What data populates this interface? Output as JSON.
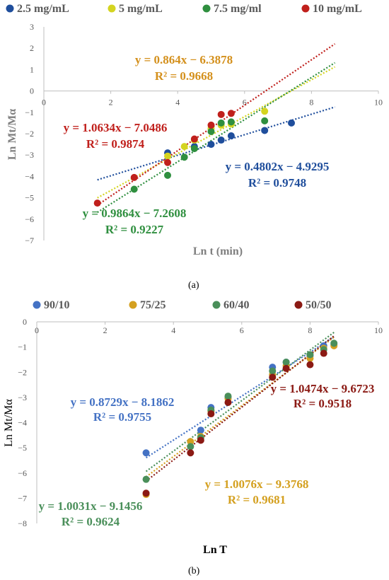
{
  "panel_labels": [
    "(a)",
    "(b)"
  ],
  "chart_data": [
    {
      "type": "scatter",
      "title": "",
      "xlabel": "Ln t (min)",
      "ylabel": "Ln Mt/Mα",
      "xlim": [
        0,
        10
      ],
      "ylim": [
        -7,
        3
      ],
      "xticks": [
        0,
        2,
        4,
        6,
        8,
        10
      ],
      "yticks": [
        3,
        2,
        1,
        0,
        -1,
        -2,
        -3,
        -4,
        -5,
        -6,
        -7
      ],
      "grid": false,
      "legend_position": "top",
      "series": [
        {
          "name": "2.5 mg/mL",
          "color": "#1f4e9c",
          "points": [
            [
              3.7,
              -2.9
            ],
            [
              4.5,
              -2.6
            ],
            [
              5.0,
              -2.5
            ],
            [
              5.3,
              -2.3
            ],
            [
              5.6,
              -2.1
            ],
            [
              6.6,
              -1.85
            ],
            [
              7.4,
              -1.5
            ]
          ],
          "trendline": {
            "slope": 0.4802,
            "intercept": -4.9295,
            "x_range": [
              1.6,
              8.7
            ]
          },
          "equation": "y = 0.4802x − 4.9295",
          "r2": "R² = 0.9748"
        },
        {
          "name": "5 mg/mL",
          "color": "#d4d420",
          "points": [
            [
              3.7,
              -3.05
            ],
            [
              4.2,
              -2.6
            ],
            [
              4.5,
              -2.3
            ],
            [
              5.0,
              -1.75
            ],
            [
              5.3,
              -1.6
            ],
            [
              5.6,
              -1.55
            ],
            [
              6.6,
              -0.95
            ]
          ],
          "trendline": {
            "slope": 0.864,
            "intercept": -6.3878,
            "x_range": [
              1.6,
              8.7
            ]
          },
          "equation": "y = 0.864x − 6.3878",
          "r2": "R² = 0.9668"
        },
        {
          "name": "7.5 mg/ml",
          "color": "#2f8f3f",
          "points": [
            [
              2.7,
              -4.6
            ],
            [
              3.7,
              -3.95
            ],
            [
              4.2,
              -3.1
            ],
            [
              4.5,
              -2.7
            ],
            [
              5.0,
              -1.9
            ],
            [
              5.3,
              -1.5
            ],
            [
              5.6,
              -1.45
            ],
            [
              6.6,
              -1.4
            ]
          ],
          "trendline": {
            "slope": 0.9864,
            "intercept": -7.2608,
            "x_range": [
              1.6,
              8.7
            ]
          },
          "equation": "y = 0.9864x − 7.2608",
          "r2": "R² = 0.9227"
        },
        {
          "name": "10 mg/mL",
          "color": "#c0201c",
          "points": [
            [
              1.6,
              -5.25
            ],
            [
              2.7,
              -4.05
            ],
            [
              3.7,
              -3.35
            ],
            [
              4.5,
              -2.25
            ],
            [
              5.0,
              -1.6
            ],
            [
              5.3,
              -1.1
            ],
            [
              5.6,
              -1.05
            ]
          ],
          "trendline": {
            "slope": 1.0634,
            "intercept": -7.0486,
            "x_range": [
              1.6,
              8.7
            ]
          },
          "equation": "y = 1.0634x − 7.0486",
          "r2": "R² = 0.9874"
        }
      ],
      "annotation_color_orange": "#d4901c"
    },
    {
      "type": "scatter",
      "title": "",
      "xlabel": "Ln T",
      "ylabel": "Ln Mt/Mα",
      "xlim": [
        0,
        10
      ],
      "ylim": [
        -8,
        0
      ],
      "xticks": [
        0,
        2,
        4,
        6,
        8,
        10
      ],
      "yticks": [
        0,
        -1,
        -2,
        -3,
        -4,
        -5,
        -6,
        -7,
        -8
      ],
      "grid": false,
      "legend_position": "top",
      "series": [
        {
          "name": "90/10",
          "color": "#4472c4",
          "points": [
            [
              3.2,
              -5.2
            ],
            [
              4.8,
              -4.3
            ],
            [
              5.1,
              -3.4
            ],
            [
              5.6,
              -3.0
            ],
            [
              6.9,
              -1.8
            ],
            [
              7.3,
              -1.6
            ],
            [
              8.0,
              -1.35
            ],
            [
              8.4,
              -0.95
            ],
            [
              8.7,
              -0.9
            ]
          ],
          "trendline": {
            "slope": 0.8729,
            "intercept": -8.1862,
            "x_range": [
              3.2,
              8.7
            ]
          },
          "equation": "y = 0.8729x − 8.1862",
          "r2": "R² = 0.9755"
        },
        {
          "name": "75/25",
          "color": "#d4a020",
          "points": [
            [
              3.2,
              -6.85
            ],
            [
              4.5,
              -4.75
            ],
            [
              4.8,
              -4.55
            ],
            [
              5.1,
              -3.55
            ],
            [
              5.6,
              -3.05
            ],
            [
              6.9,
              -2.1
            ],
            [
              7.3,
              -1.75
            ],
            [
              8.0,
              -1.45
            ],
            [
              8.4,
              -1.05
            ],
            [
              8.7,
              -0.95
            ]
          ],
          "trendline": {
            "slope": 1.0076,
            "intercept": -9.3768,
            "x_range": [
              3.2,
              8.7
            ]
          },
          "equation": "y = 1.0076x − 9.3768",
          "r2": "R² = 0.9681"
        },
        {
          "name": "60/40",
          "color": "#4a8f5a",
          "points": [
            [
              3.2,
              -6.25
            ],
            [
              4.5,
              -4.95
            ],
            [
              4.8,
              -4.6
            ],
            [
              5.1,
              -3.5
            ],
            [
              5.6,
              -2.95
            ],
            [
              6.9,
              -1.95
            ],
            [
              7.3,
              -1.6
            ],
            [
              8.0,
              -1.3
            ],
            [
              8.4,
              -1.1
            ],
            [
              8.7,
              -0.85
            ]
          ],
          "trendline": {
            "slope": 1.0031,
            "intercept": -9.1456,
            "x_range": [
              3.2,
              8.7
            ]
          },
          "equation": "y = 1.0031x − 9.1456",
          "r2": "R² = 0.9624"
        },
        {
          "name": "50/50",
          "color": "#8b1a14",
          "points": [
            [
              3.2,
              -6.8
            ],
            [
              4.5,
              -5.2
            ],
            [
              4.8,
              -4.7
            ],
            [
              5.1,
              -3.65
            ],
            [
              5.6,
              -3.2
            ],
            [
              6.9,
              -2.2
            ],
            [
              7.3,
              -1.85
            ],
            [
              8.0,
              -1.7
            ],
            [
              8.4,
              -1.25
            ]
          ],
          "trendline": {
            "slope": 1.0474,
            "intercept": -9.6723,
            "x_range": [
              3.2,
              8.7
            ]
          },
          "equation": "y = 1.0474x − 9.6723",
          "r2": "R² = 0.9518"
        }
      ]
    }
  ]
}
